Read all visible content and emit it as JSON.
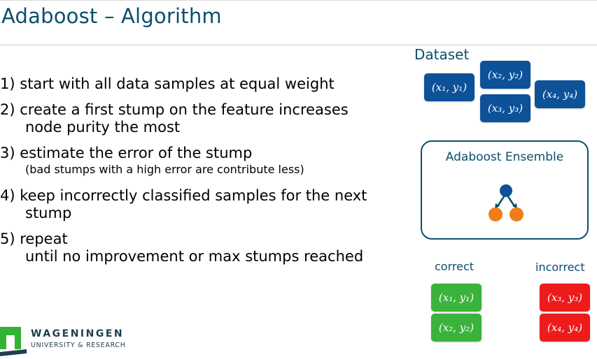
{
  "slide": {
    "title": "Adaboost – Algorithm"
  },
  "steps": [
    {
      "num": "1)",
      "line1": "start with all data samples at equal weight"
    },
    {
      "num": "2)",
      "line1": "create a first stump on the feature increases",
      "line2": "node purity the most"
    },
    {
      "num": "3)",
      "line1": "estimate the error of the stump",
      "sub": "(bad stumps with a high error are contribute less)"
    },
    {
      "num": "4)",
      "line1": "keep incorrectly classified samples for the next",
      "line2": "stump"
    },
    {
      "num": "5)",
      "line1": "repeat",
      "line2": "until no improvement or max stumps reached"
    }
  ],
  "dataset": {
    "label": "Dataset",
    "samples": [
      "(x₁, y₁)",
      "(x₂, y₂)",
      "(x₃, y₃)",
      "(x₄, y₄)"
    ]
  },
  "ensemble": {
    "label": "Adaboost Ensemble",
    "icon": "decision-stump-icon"
  },
  "correct": {
    "label": "correct",
    "samples": [
      "(x₁, y₁)",
      "(x₂, y₂)"
    ]
  },
  "incorrect": {
    "label": "incorrect",
    "samples": [
      "(x₃, y₃)",
      "(x₄, y₄)"
    ]
  },
  "logo": {
    "name": "WAGENINGEN",
    "sub": "UNIVERSITY & RESEARCH"
  },
  "colors": {
    "text": "#0b4f6c",
    "dataset_tile": "#0d5199",
    "correct_tile": "#3bb33b",
    "incorrect_tile": "#ee1b1b",
    "root_node": "#0d5199",
    "leaf_node": "#f07d1a",
    "logo_green": "#34b233"
  }
}
